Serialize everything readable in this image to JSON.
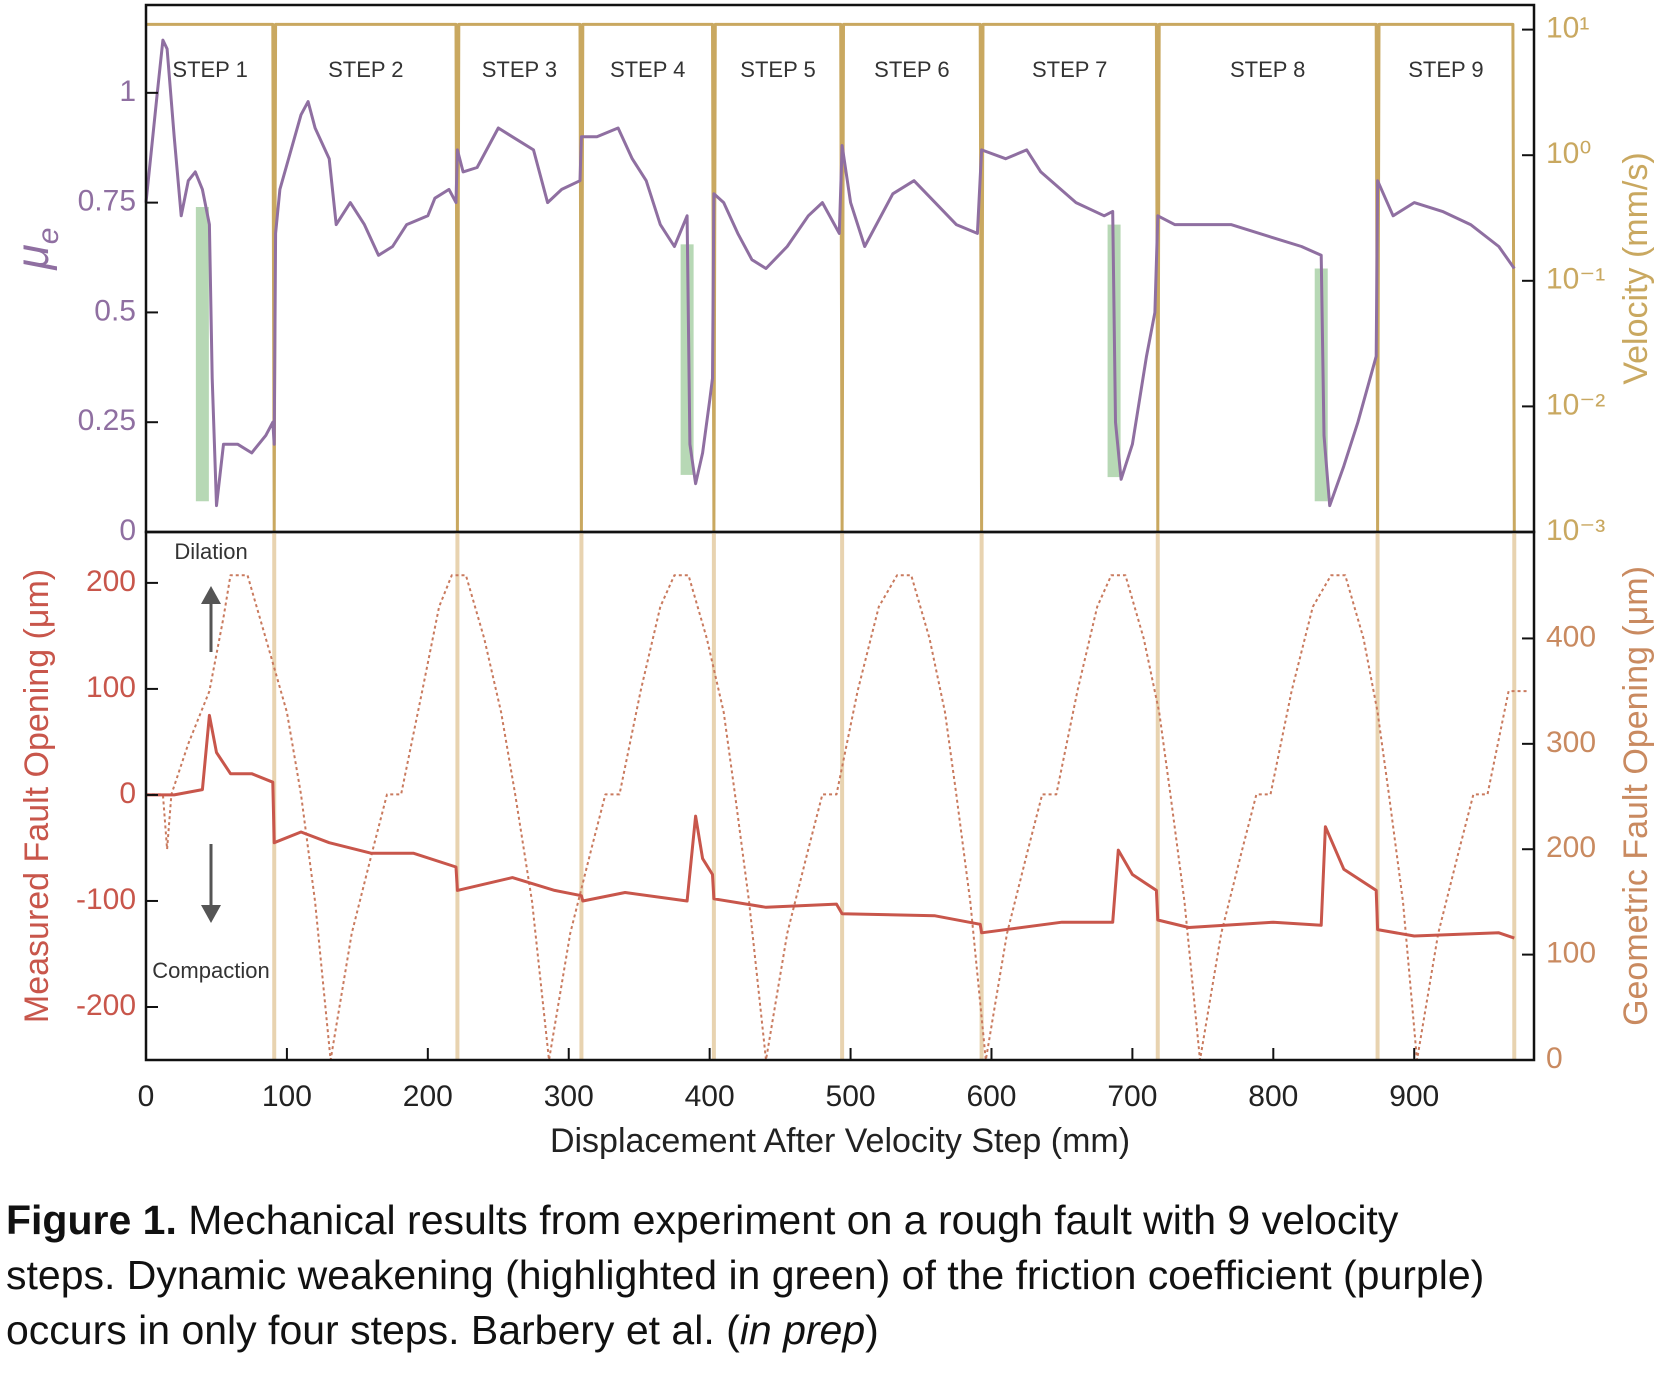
{
  "chart_data": [
    {
      "type": "line",
      "ylabel": "μ",
      "ylabel_sub": "e",
      "y2label": "Velocity (mm/s)",
      "xlim": [
        0,
        985
      ],
      "ylim": [
        0,
        1.2
      ],
      "yticks": [
        0,
        0.25,
        0.5,
        0.75,
        1
      ],
      "y2lim": [
        0.001,
        15.7
      ],
      "y2log": true,
      "y2ticks": [
        {
          "value": 0.001,
          "label": "10⁻³"
        },
        {
          "value": 0.01,
          "label": "10⁻²"
        },
        {
          "value": 0.1,
          "label": "10⁻¹"
        },
        {
          "value": 1,
          "label": "10⁰"
        },
        {
          "value": 10,
          "label": "10¹"
        }
      ],
      "ycolor": "#8f6fa1",
      "y2color": "#c9a860",
      "step_labels": [
        "STEP 1",
        "STEP 2",
        "STEP 3",
        "STEP 4",
        "STEP 5",
        "STEP 6",
        "STEP 7",
        "STEP 8",
        "STEP 9"
      ],
      "step_boundaries": [
        0,
        91,
        221,
        309,
        403,
        494,
        593,
        718,
        874,
        971
      ],
      "highlight_color": "#9fcb9c",
      "highlights": [
        {
          "x": 40,
          "top": 0.74,
          "bottom": 0.07
        },
        {
          "x": 384,
          "top": 0.655,
          "bottom": 0.13
        },
        {
          "x": 687,
          "top": 0.7,
          "bottom": 0.125
        },
        {
          "x": 834,
          "top": 0.6,
          "bottom": 0.07
        }
      ],
      "series": [
        {
          "name": "Velocity",
          "color": "#c9a860",
          "axis": "y2",
          "x": [
            0,
            90,
            91,
            92,
            220,
            221,
            222,
            308,
            309,
            310,
            402,
            403,
            404,
            493,
            494,
            495,
            592,
            593,
            594,
            717,
            718,
            719,
            873,
            874,
            875,
            970,
            971
          ],
          "values": [
            11,
            11,
            0.001,
            11,
            11,
            0.001,
            11,
            11,
            0.001,
            11,
            11,
            0.001,
            11,
            11,
            0.001,
            11,
            11,
            0.001,
            11,
            11,
            0.001,
            11,
            11,
            0.001,
            11,
            11,
            0.001
          ]
        },
        {
          "name": "Friction",
          "color": "#8f6fa1",
          "x": [
            0,
            8,
            12,
            15,
            20,
            25,
            30,
            35,
            40,
            45,
            47,
            50,
            55,
            65,
            75,
            85,
            90,
            91,
            92,
            95,
            110,
            115,
            120,
            130,
            135,
            145,
            155,
            165,
            175,
            185,
            200,
            205,
            215,
            220,
            221,
            225,
            235,
            250,
            260,
            275,
            285,
            295,
            308,
            309,
            320,
            335,
            345,
            355,
            365,
            375,
            384,
            386,
            390,
            395,
            400,
            402,
            403,
            410,
            420,
            430,
            440,
            455,
            470,
            480,
            492,
            494,
            500,
            510,
            530,
            545,
            560,
            575,
            590,
            593,
            610,
            625,
            635,
            660,
            680,
            686,
            688,
            692,
            700,
            710,
            716,
            718,
            730,
            750,
            770,
            800,
            820,
            834,
            836,
            840,
            850,
            860,
            873,
            874,
            885,
            900,
            920,
            940,
            960,
            971
          ],
          "values": [
            0.75,
            1.0,
            1.12,
            1.1,
            0.9,
            0.72,
            0.8,
            0.82,
            0.78,
            0.7,
            0.35,
            0.06,
            0.2,
            0.2,
            0.18,
            0.22,
            0.25,
            0.2,
            0.68,
            0.78,
            0.95,
            0.98,
            0.92,
            0.85,
            0.7,
            0.75,
            0.7,
            0.63,
            0.65,
            0.7,
            0.72,
            0.76,
            0.78,
            0.75,
            0.87,
            0.82,
            0.83,
            0.92,
            0.9,
            0.87,
            0.75,
            0.78,
            0.8,
            0.9,
            0.9,
            0.92,
            0.85,
            0.8,
            0.7,
            0.65,
            0.72,
            0.2,
            0.11,
            0.18,
            0.3,
            0.35,
            0.77,
            0.75,
            0.68,
            0.62,
            0.6,
            0.65,
            0.72,
            0.75,
            0.68,
            0.88,
            0.75,
            0.65,
            0.77,
            0.8,
            0.75,
            0.7,
            0.68,
            0.87,
            0.85,
            0.87,
            0.82,
            0.75,
            0.72,
            0.73,
            0.25,
            0.12,
            0.2,
            0.4,
            0.5,
            0.72,
            0.7,
            0.7,
            0.7,
            0.67,
            0.65,
            0.63,
            0.22,
            0.06,
            0.15,
            0.25,
            0.4,
            0.8,
            0.72,
            0.75,
            0.73,
            0.7,
            0.65,
            0.6
          ]
        }
      ]
    },
    {
      "type": "line",
      "xlabel": "Displacement After Velocity Step (mm)",
      "ylabel": "Measured Fault Opening (μm)",
      "y2label": "Geometric Fault Opening (μm)",
      "annotations": [
        "Dilation",
        "Compaction"
      ],
      "xlim": [
        0,
        985
      ],
      "xticks": [
        0,
        100,
        200,
        300,
        400,
        500,
        600,
        700,
        800,
        900
      ],
      "ylim": [
        -250,
        248
      ],
      "yticks": [
        -200,
        -100,
        0,
        100,
        200
      ],
      "y2lim": [
        0,
        501
      ],
      "y2ticks": [
        0,
        100,
        200,
        300,
        400
      ],
      "ycolor": "#c8564b",
      "y2color": "#c98a60",
      "boundary_color": "#e8d3b0",
      "step_boundaries": [
        91,
        221,
        309,
        403,
        494,
        593,
        718,
        874,
        971
      ],
      "series": [
        {
          "name": "Geometric Fault Opening",
          "color": "#c97a5e",
          "axis": "y2",
          "dashed": true,
          "x": [
            0,
            12,
            15,
            18,
            30,
            45,
            55,
            60,
            72,
            85,
            100,
            110,
            120,
            131,
            146,
            161,
            171,
            181,
            196,
            208,
            217,
            227,
            240,
            252,
            262,
            274,
            286,
            301,
            316,
            326,
            336,
            351,
            365,
            375,
            385,
            398,
            410,
            418,
            428,
            440,
            455,
            470,
            480,
            490,
            505,
            520,
            533,
            543,
            556,
            567,
            575,
            585,
            596,
            611,
            626,
            636,
            646,
            661,
            675,
            685,
            695,
            708,
            719,
            727,
            737,
            748,
            763,
            778,
            788,
            798,
            813,
            828,
            841,
            851,
            864,
            874,
            882,
            892,
            902,
            917,
            932,
            942,
            952,
            967,
            980
          ],
          "values": [
            252,
            252,
            200,
            252,
            300,
            350,
            420,
            460,
            460,
            400,
            330,
            252,
            150,
            0,
            120,
            200,
            252,
            252,
            350,
            430,
            460,
            460,
            400,
            330,
            252,
            150,
            0,
            120,
            200,
            252,
            252,
            350,
            430,
            460,
            460,
            400,
            330,
            252,
            150,
            0,
            120,
            200,
            252,
            252,
            350,
            430,
            460,
            460,
            400,
            330,
            252,
            150,
            0,
            120,
            200,
            252,
            252,
            350,
            430,
            460,
            460,
            400,
            330,
            252,
            150,
            0,
            120,
            200,
            252,
            252,
            350,
            430,
            460,
            460,
            400,
            330,
            252,
            150,
            0,
            120,
            200,
            252,
            252,
            350,
            350
          ]
        },
        {
          "name": "Measured Fault Opening",
          "color": "#c8564b",
          "x": [
            0,
            20,
            40,
            45,
            50,
            60,
            75,
            90,
            91,
            110,
            130,
            160,
            190,
            220,
            221,
            260,
            290,
            309,
            310,
            340,
            384,
            390,
            395,
            402,
            403,
            440,
            490,
            494,
            560,
            592,
            593,
            650,
            686,
            690,
            700,
            717,
            718,
            740,
            800,
            834,
            837,
            850,
            873,
            874,
            900,
            960,
            971
          ],
          "values": [
            0,
            0,
            5,
            75,
            40,
            20,
            20,
            12,
            -45,
            -35,
            -45,
            -55,
            -55,
            -68,
            -90,
            -78,
            -90,
            -95,
            -100,
            -92,
            -100,
            -20,
            -60,
            -75,
            -98,
            -106,
            -103,
            -112,
            -114,
            -122,
            -130,
            -120,
            -120,
            -52,
            -75,
            -90,
            -118,
            -125,
            -120,
            -123,
            -30,
            -70,
            -90,
            -127,
            -133,
            -130,
            -135
          ]
        }
      ]
    }
  ],
  "caption": {
    "label": "Figure 1.",
    "lines": [
      " Mechanical results from experiment on a rough fault with 9 velocity",
      "steps. Dynamic weakening (highlighted in green) of the friction coefficient (purple)",
      "occurs in only four steps. Barbery et al. ("
    ],
    "italic": "in prep",
    "after": ")"
  }
}
